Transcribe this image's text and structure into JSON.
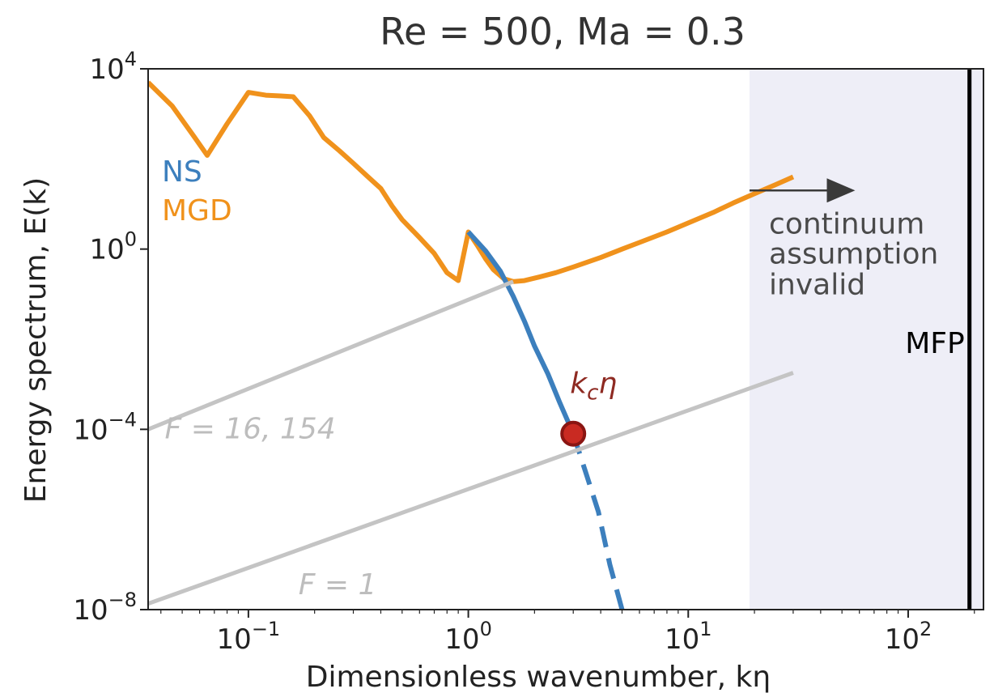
{
  "chart_data": {
    "type": "line",
    "title": "Re = 500, Ma = 0.3",
    "xlabel": "Dimensionless wavenumber, kη",
    "ylabel": "Energy spectrum, E(k)",
    "xscale": "log",
    "yscale": "log",
    "xlim": [
      0.035,
      220
    ],
    "ylim": [
      1e-08,
      10000
    ],
    "x_ticks": [
      {
        "value": 0.1,
        "base": "10",
        "exp": "−1"
      },
      {
        "value": 1,
        "base": "10",
        "exp": "0"
      },
      {
        "value": 10,
        "base": "10",
        "exp": "1"
      },
      {
        "value": 100,
        "base": "10",
        "exp": "2"
      }
    ],
    "y_ticks": [
      {
        "value": 10000,
        "base": "10",
        "exp": "4"
      },
      {
        "value": 1,
        "base": "10",
        "exp": "0"
      },
      {
        "value": 0.0001,
        "base": "10",
        "exp": "−4"
      },
      {
        "value": 1e-08,
        "base": "10",
        "exp": "−8"
      }
    ],
    "grid": false,
    "legend": {
      "placement": "upper-left",
      "entries": [
        {
          "label": "NS",
          "color": "#3c7fbd"
        },
        {
          "label": "MGD",
          "color": "#f0921c"
        }
      ]
    },
    "series": [
      {
        "name": "MGD",
        "color": "#f0921c",
        "x": [
          0.035,
          0.045,
          0.057,
          0.065,
          0.08,
          0.1,
          0.12,
          0.14,
          0.16,
          0.19,
          0.22,
          0.26,
          0.3,
          0.35,
          0.4,
          0.45,
          0.5,
          0.6,
          0.7,
          0.8,
          0.9,
          1.0,
          1.1,
          1.2,
          1.3,
          1.45,
          1.6,
          1.8,
          2.1,
          2.5,
          3,
          4,
          5,
          6,
          8,
          10,
          13,
          16,
          20,
          25,
          30
        ],
        "y": [
          5000,
          1500,
          300,
          120,
          600,
          3000,
          2600,
          2500,
          2400,
          900,
          300,
          150,
          80,
          40,
          22,
          9,
          4.5,
          1.8,
          0.8,
          0.3,
          0.2,
          2.4,
          1.2,
          0.6,
          0.35,
          0.22,
          0.19,
          0.2,
          0.24,
          0.3,
          0.4,
          0.65,
          1.0,
          1.4,
          2.4,
          3.8,
          6.5,
          10.5,
          17,
          27,
          40
        ]
      },
      {
        "name": "NS",
        "color": "#3c7fbd",
        "x": [
          1.0,
          1.2,
          1.4,
          1.6,
          1.8,
          2.0,
          2.3,
          2.6,
          3.0
        ],
        "y": [
          2.4,
          0.9,
          0.32,
          0.09,
          0.025,
          0.007,
          0.0017,
          0.0004,
          8e-05
        ]
      },
      {
        "name": "NS",
        "color": "#3c7fbd",
        "dashed": true,
        "x": [
          3.0,
          3.4,
          3.9,
          4.4,
          5.0
        ],
        "y": [
          8e-05,
          1.2e-05,
          1.5e-06,
          1e-07,
          1e-08
        ]
      },
      {
        "name": "F = 16, 154",
        "color": "#c4c4c4",
        "x": [
          0.035,
          1.6
        ],
        "y": [
          0.0001,
          0.19
        ]
      },
      {
        "name": "F = 1",
        "color": "#c4c4c4",
        "x": [
          0.035,
          30
        ],
        "y": [
          1.35e-08,
          0.0018
        ]
      }
    ],
    "shaded_region": {
      "x0": 19,
      "x1": 220,
      "color": "#eeeef7"
    },
    "vertical_line": {
      "x": 190,
      "label": "MFP"
    },
    "point": {
      "x": 3.0,
      "y": 8e-05,
      "label": "k",
      "label_sub": "c",
      "label_tail": "η",
      "color": "#c92a22"
    },
    "annotations": [
      {
        "text": "continuum",
        "x": 20,
        "y": 2.2
      },
      {
        "text": "assumption",
        "x": 20,
        "y": 0.48
      },
      {
        "text": "invalid",
        "x": 20,
        "y": 0.1
      }
    ],
    "arrow": {
      "x0": 19,
      "x1": 55,
      "y": 20
    },
    "line_labels": [
      {
        "text": "F = 16, 154",
        "x": 0.037,
        "y": 6.3e-05
      },
      {
        "text": "F = 1",
        "x": 0.15,
        "y": 2.2e-08
      }
    ]
  }
}
